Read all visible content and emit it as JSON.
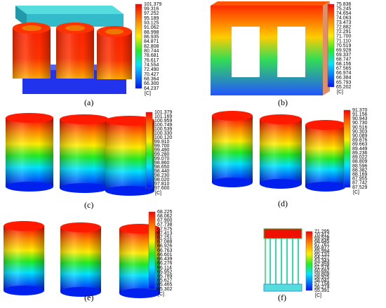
{
  "panels": [
    {
      "label": "(a)",
      "colorbar": {
        "ticks": [
          "101.379",
          "99.316",
          "97.252",
          "95.189",
          "93.125",
          "91.062",
          "88.998",
          "86.935",
          "84.871",
          "82.808",
          "80.744",
          "78.681",
          "76.617",
          "74.554",
          "72.490",
          "70.427",
          "68.364",
          "66.300",
          "64.237"
        ],
        "unit": "[C]"
      }
    },
    {
      "label": "(b)",
      "colorbar": {
        "ticks": [
          "75.836",
          "75.245",
          "74.654",
          "74.063",
          "73.473",
          "72.882",
          "72.291",
          "71.700",
          "71.110",
          "70.519",
          "69.928",
          "69.337",
          "68.747",
          "68.156",
          "67.565",
          "66.974",
          "66.384",
          "65.793",
          "65.202"
        ],
        "unit": "[C]"
      }
    },
    {
      "label": "(c)",
      "colorbar": {
        "ticks": [
          "101.379",
          "101.169",
          "100.959",
          "100.749",
          "100.539",
          "100.330",
          "100.120",
          "99.910",
          "99.700",
          "99.490",
          "99.280",
          "99.070",
          "98.860",
          "98.650",
          "98.440",
          "98.230",
          "98.020",
          "97.810",
          "97.600"
        ],
        "unit": "[C]"
      }
    },
    {
      "label": "(d)",
      "colorbar": {
        "ticks": [
          "91.370",
          "91.156",
          "90.943",
          "90.730",
          "90.516",
          "90.303",
          "90.089",
          "89.876",
          "89.663",
          "89.449",
          "89.236",
          "89.022",
          "88.809",
          "88.596",
          "88.382",
          "88.169",
          "87.955",
          "87.742",
          "87.529"
        ],
        "unit": "[C]"
      }
    },
    {
      "label": "(e)",
      "colorbar": {
        "ticks": [
          "68.225",
          "68.062",
          "67.900",
          "67.738",
          "67.575",
          "67.413",
          "67.251",
          "67.088",
          "66.926",
          "66.763",
          "66.601",
          "66.439",
          "66.276",
          "66.114",
          "65.952",
          "65.789",
          "65.627",
          "65.465",
          "65.302"
        ],
        "unit": "[C]"
      }
    },
    {
      "label": "(f)",
      "colorbar": {
        "ticks": [
          "71.295",
          "70.412",
          "69.528",
          "68.645",
          "67.761",
          "66.877",
          "65.994",
          "65.110",
          "64.227",
          "63.343",
          "62.459",
          "61.576",
          "60.692",
          "59.809",
          "58.925",
          "58.041",
          "57.158",
          "56.274",
          "55.391"
        ],
        "unit": "[C]"
      }
    }
  ]
}
